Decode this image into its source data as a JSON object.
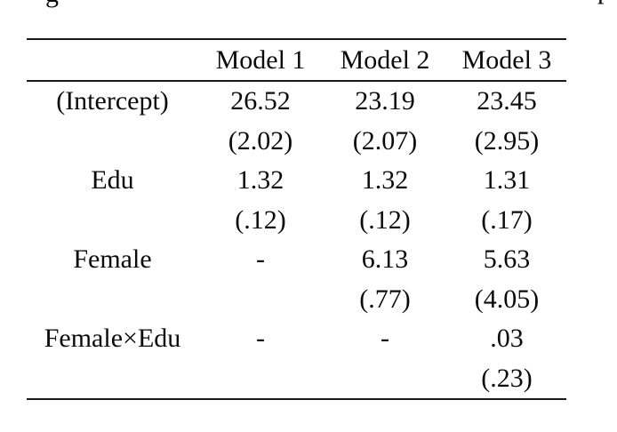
{
  "colors": {
    "background": "#ffffff",
    "text": "#0b0b0b",
    "rule": "#1a1a1a"
  },
  "fragments": {
    "top_left_glyph": "g",
    "top_right_glyph": "p"
  },
  "table": {
    "header": {
      "label_column": "",
      "columns": [
        "Model 1",
        "Model 2",
        "Model 3"
      ]
    },
    "rows": [
      {
        "label": "(Intercept)",
        "values": [
          "26.52",
          "23.19",
          "23.45"
        ]
      },
      {
        "label": "",
        "values": [
          "(2.02)",
          "(2.07)",
          "(2.95)"
        ]
      },
      {
        "label": "Edu",
        "values": [
          "1.32",
          "1.32",
          "1.31"
        ]
      },
      {
        "label": "",
        "values": [
          "(.12)",
          "(.12)",
          "(.17)"
        ]
      },
      {
        "label": "Female",
        "values": [
          "-",
          "6.13",
          "5.63"
        ]
      },
      {
        "label": "",
        "values": [
          "",
          "(.77)",
          "(4.05)"
        ]
      },
      {
        "label": "Female×Edu",
        "values": [
          "-",
          "-",
          ".03"
        ]
      },
      {
        "label": "",
        "values": [
          "",
          "",
          "(.23)"
        ]
      }
    ]
  }
}
